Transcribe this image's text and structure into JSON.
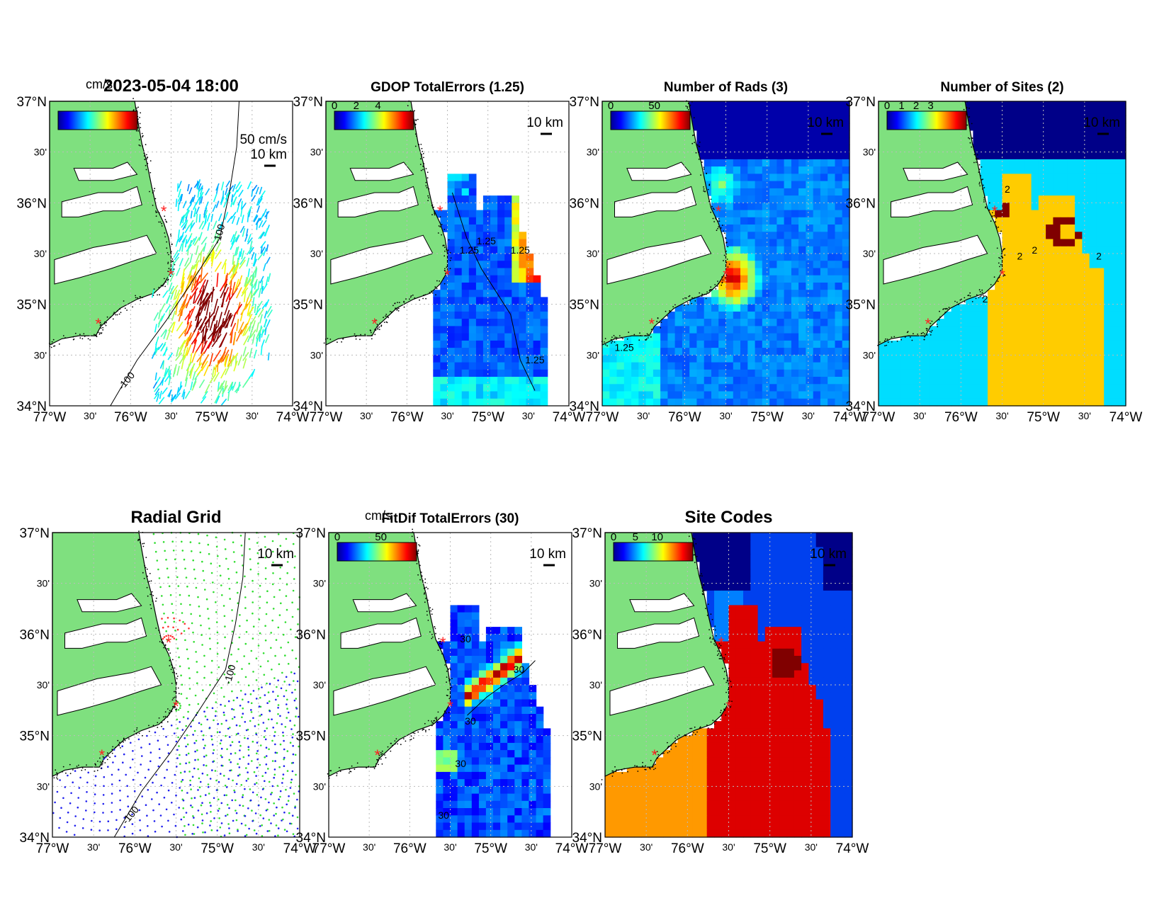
{
  "figure": {
    "panels": [
      {
        "id": "vectors",
        "title": "2023-05-04 18:00",
        "colorbar_unit": "cm/s",
        "colorbar_ticks": [],
        "scale_arrow_label": "50 cm/s",
        "scale_bar_label": "10 km",
        "contour_labels": [
          "-100",
          "-100"
        ]
      },
      {
        "id": "gdop",
        "title": "GDOP TotalErrors (1.25)",
        "colorbar_ticks": [
          "0",
          "2",
          "4"
        ],
        "scale_bar_label": "10 km",
        "contour_labels": [
          "1.25",
          "1.25",
          "1.25",
          "1.25"
        ]
      },
      {
        "id": "nrads",
        "title": "Number of Rads (3)",
        "colorbar_ticks": [
          "0",
          "50"
        ],
        "scale_bar_label": "10 km",
        "contour_labels": [
          "1.25"
        ]
      },
      {
        "id": "nsites",
        "title": "Number of Sites (2)",
        "colorbar_ticks": [
          "0",
          "1",
          "2",
          "3"
        ],
        "scale_bar_label": "10 km",
        "contour_labels": [
          "2",
          "2",
          "2",
          "2",
          "2"
        ]
      },
      {
        "id": "radgrid",
        "title": "Radial Grid",
        "scale_bar_label": "10 km",
        "contour_labels": [
          "-100",
          "-100"
        ]
      },
      {
        "id": "fitdif",
        "title": "FitDif TotalErrors (30)",
        "colorbar_unit": "cm/s",
        "colorbar_ticks": [
          "0",
          "50"
        ],
        "scale_bar_label": "10 km",
        "contour_labels": [
          "30",
          "30",
          "30",
          "30",
          "30"
        ]
      },
      {
        "id": "sitecodes",
        "title": "Site Codes",
        "colorbar_ticks": [
          "0",
          "5",
          "10"
        ],
        "scale_bar_label": "10 km"
      }
    ],
    "lat_ticks": [
      "37°N",
      "30'",
      "36°N",
      "30'",
      "35°N",
      "30'",
      "34°N"
    ],
    "lon_ticks": [
      "77°W",
      "30'",
      "76°W",
      "30'",
      "75°W",
      "30'",
      "74°W"
    ],
    "colors": {
      "land": "#7fe07f",
      "coast": "#000000",
      "site_marker": "#ff2020",
      "grid_site_a": "#ff3030",
      "grid_site_b": "#30dd30",
      "grid_site_c": "#2020ee"
    }
  }
}
